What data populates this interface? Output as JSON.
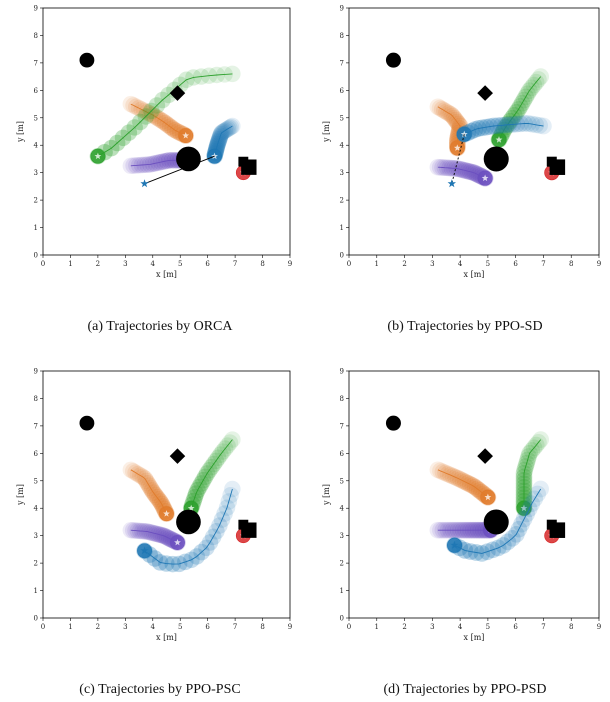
{
  "figure": {
    "captions": [
      "(a) Trajectories by ORCA",
      "(b) Trajectories by PPO-SD",
      "(c) Trajectories by PPO-PSC",
      "(d) Trajectories by PPO-PSD"
    ]
  },
  "colors": {
    "human_orange": "#e07b2b",
    "human_green": "#2ca02c",
    "human_purple": "#6b4fbf",
    "human_red": "#d62728",
    "robot_blue": "#1f77b4",
    "obstacle": "#000000"
  },
  "chart_data": [
    {
      "type": "scatter",
      "title": "",
      "caption": "(a) Trajectories by ORCA",
      "xlabel": "x [m]",
      "ylabel": "y [m]",
      "xlim": [
        0,
        9
      ],
      "ylim": [
        0,
        9
      ],
      "xticks": [
        0,
        1,
        2,
        3,
        4,
        5,
        6,
        7,
        8,
        9
      ],
      "yticks": [
        0,
        1,
        2,
        3,
        4,
        5,
        6,
        7,
        8,
        9
      ],
      "grid": false,
      "obstacles": [
        {
          "shape": "circle",
          "center": [
            1.6,
            7.1
          ],
          "radius": 0.27
        },
        {
          "shape": "diamond",
          "center": [
            4.9,
            5.9
          ],
          "radius": 0.2
        },
        {
          "shape": "circle",
          "center": [
            5.3,
            3.5
          ],
          "radius": 0.45
        },
        {
          "shape": "square",
          "center": [
            7.5,
            3.2
          ],
          "radius": 0.28
        },
        {
          "shape": "square",
          "center": [
            7.3,
            3.4
          ],
          "radius": 0.18
        }
      ],
      "series": [
        {
          "role": "human",
          "color": "#e07b2b",
          "points": [
            [
              3.2,
              5.5
            ],
            [
              3.6,
              5.3
            ],
            [
              4.0,
              5.1
            ],
            [
              4.4,
              4.85
            ],
            [
              4.8,
              4.55
            ],
            [
              5.2,
              4.35
            ]
          ]
        },
        {
          "role": "human",
          "color": "#2ca02c",
          "points": [
            [
              6.9,
              6.6
            ],
            [
              6.2,
              6.55
            ],
            [
              5.3,
              6.45
            ],
            [
              4.3,
              5.6
            ],
            [
              3.4,
              4.7
            ],
            [
              2.5,
              3.9
            ],
            [
              2.0,
              3.6
            ]
          ]
        },
        {
          "role": "human",
          "color": "#6b4fbf",
          "points": [
            [
              3.2,
              3.25
            ],
            [
              3.9,
              3.3
            ],
            [
              4.6,
              3.45
            ],
            [
              5.3,
              3.45
            ]
          ]
        },
        {
          "role": "human",
          "color": "#d62728",
          "points": [
            [
              7.3,
              3.0
            ]
          ]
        },
        {
          "role": "robot",
          "color": "#1f77b4",
          "points": [
            [
              6.9,
              4.7
            ],
            [
              6.5,
              4.45
            ],
            [
              6.35,
              4.0
            ],
            [
              6.25,
              3.6
            ]
          ],
          "path": [
            [
              6.25,
              3.6
            ],
            [
              3.7,
              2.6
            ]
          ],
          "goal": [
            3.7,
            2.6
          ],
          "path_style": "solid"
        }
      ]
    },
    {
      "type": "scatter",
      "title": "",
      "caption": "(b) Trajectories by PPO-SD",
      "xlabel": "x [m]",
      "ylabel": "y [m]",
      "xlim": [
        0,
        9
      ],
      "ylim": [
        0,
        9
      ],
      "xticks": [
        0,
        1,
        2,
        3,
        4,
        5,
        6,
        7,
        8,
        9
      ],
      "yticks": [
        0,
        1,
        2,
        3,
        4,
        5,
        6,
        7,
        8,
        9
      ],
      "grid": false,
      "obstacles": [
        {
          "shape": "circle",
          "center": [
            1.6,
            7.1
          ],
          "radius": 0.27
        },
        {
          "shape": "diamond",
          "center": [
            4.9,
            5.9
          ],
          "radius": 0.2
        },
        {
          "shape": "circle",
          "center": [
            5.3,
            3.5
          ],
          "radius": 0.45
        },
        {
          "shape": "square",
          "center": [
            7.5,
            3.2
          ],
          "radius": 0.28
        },
        {
          "shape": "square",
          "center": [
            7.3,
            3.4
          ],
          "radius": 0.18
        }
      ],
      "series": [
        {
          "role": "human",
          "color": "#e07b2b",
          "points": [
            [
              3.2,
              5.4
            ],
            [
              3.7,
              5.1
            ],
            [
              4.0,
              4.7
            ],
            [
              3.9,
              4.2
            ],
            [
              3.9,
              3.9
            ]
          ]
        },
        {
          "role": "human",
          "color": "#2ca02c",
          "points": [
            [
              6.9,
              6.5
            ],
            [
              6.5,
              6.0
            ],
            [
              6.1,
              5.3
            ],
            [
              5.6,
              4.6
            ],
            [
              5.4,
              4.2
            ]
          ]
        },
        {
          "role": "human",
          "color": "#6b4fbf",
          "points": [
            [
              3.2,
              3.2
            ],
            [
              3.9,
              3.15
            ],
            [
              4.5,
              3.0
            ],
            [
              4.9,
              2.8
            ]
          ]
        },
        {
          "role": "human",
          "color": "#d62728",
          "points": [
            [
              7.3,
              3.0
            ]
          ]
        },
        {
          "role": "robot",
          "color": "#1f77b4",
          "points": [
            [
              7.0,
              4.7
            ],
            [
              6.4,
              4.8
            ],
            [
              5.8,
              4.75
            ],
            [
              5.2,
              4.7
            ],
            [
              4.6,
              4.6
            ],
            [
              4.15,
              4.4
            ]
          ],
          "path": [
            [
              4.15,
              4.4
            ],
            [
              3.7,
              2.6
            ]
          ],
          "goal": [
            3.7,
            2.6
          ],
          "path_style": "dashed"
        }
      ]
    },
    {
      "type": "scatter",
      "title": "",
      "caption": "(c) Trajectories by PPO-PSC",
      "xlabel": "x [m]",
      "ylabel": "y [m]",
      "xlim": [
        0,
        9
      ],
      "ylim": [
        0,
        9
      ],
      "xticks": [
        0,
        1,
        2,
        3,
        4,
        5,
        6,
        7,
        8,
        9
      ],
      "yticks": [
        0,
        1,
        2,
        3,
        4,
        5,
        6,
        7,
        8,
        9
      ],
      "grid": false,
      "obstacles": [
        {
          "shape": "circle",
          "center": [
            1.6,
            7.1
          ],
          "radius": 0.27
        },
        {
          "shape": "diamond",
          "center": [
            4.9,
            5.9
          ],
          "radius": 0.2
        },
        {
          "shape": "circle",
          "center": [
            5.3,
            3.5
          ],
          "radius": 0.45
        },
        {
          "shape": "square",
          "center": [
            7.5,
            3.2
          ],
          "radius": 0.28
        },
        {
          "shape": "square",
          "center": [
            7.3,
            3.4
          ],
          "radius": 0.18
        }
      ],
      "series": [
        {
          "role": "human",
          "color": "#e07b2b",
          "points": [
            [
              3.2,
              5.4
            ],
            [
              3.7,
              5.1
            ],
            [
              4.0,
              4.6
            ],
            [
              4.3,
              4.2
            ],
            [
              4.5,
              3.8
            ]
          ]
        },
        {
          "role": "human",
          "color": "#2ca02c",
          "points": [
            [
              6.9,
              6.5
            ],
            [
              6.5,
              6.0
            ],
            [
              6.0,
              5.3
            ],
            [
              5.6,
              4.6
            ],
            [
              5.4,
              4.0
            ]
          ]
        },
        {
          "role": "human",
          "color": "#6b4fbf",
          "points": [
            [
              3.2,
              3.2
            ],
            [
              3.8,
              3.15
            ],
            [
              4.4,
              3.0
            ],
            [
              4.9,
              2.75
            ]
          ]
        },
        {
          "role": "human",
          "color": "#d62728",
          "points": [
            [
              7.3,
              3.0
            ]
          ]
        },
        {
          "role": "robot",
          "color": "#1f77b4",
          "points": [
            [
              6.9,
              4.7
            ],
            [
              6.7,
              4.0
            ],
            [
              6.4,
              3.3
            ],
            [
              6.0,
              2.6
            ],
            [
              5.5,
              2.15
            ],
            [
              4.9,
              1.95
            ],
            [
              4.3,
              2.0
            ],
            [
              3.7,
              2.45
            ]
          ],
          "goal": [
            3.7,
            2.45
          ]
        }
      ]
    },
    {
      "type": "scatter",
      "title": "",
      "caption": "(d) Trajectories by PPO-PSD",
      "xlabel": "x [m]",
      "ylabel": "y [m]",
      "xlim": [
        0,
        9
      ],
      "ylim": [
        0,
        9
      ],
      "xticks": [
        0,
        1,
        2,
        3,
        4,
        5,
        6,
        7,
        8,
        9
      ],
      "yticks": [
        0,
        1,
        2,
        3,
        4,
        5,
        6,
        7,
        8,
        9
      ],
      "grid": false,
      "obstacles": [
        {
          "shape": "circle",
          "center": [
            1.6,
            7.1
          ],
          "radius": 0.27
        },
        {
          "shape": "diamond",
          "center": [
            4.9,
            5.9
          ],
          "radius": 0.2
        },
        {
          "shape": "circle",
          "center": [
            5.3,
            3.5
          ],
          "radius": 0.45
        },
        {
          "shape": "square",
          "center": [
            7.5,
            3.2
          ],
          "radius": 0.28
        },
        {
          "shape": "square",
          "center": [
            7.3,
            3.4
          ],
          "radius": 0.18
        }
      ],
      "series": [
        {
          "role": "human",
          "color": "#e07b2b",
          "points": [
            [
              3.2,
              5.4
            ],
            [
              3.9,
              5.1
            ],
            [
              4.5,
              4.8
            ],
            [
              5.0,
              4.4
            ]
          ]
        },
        {
          "role": "human",
          "color": "#2ca02c",
          "points": [
            [
              6.9,
              6.5
            ],
            [
              6.5,
              6.0
            ],
            [
              6.3,
              5.3
            ],
            [
              6.3,
              4.5
            ],
            [
              6.3,
              4.0
            ]
          ]
        },
        {
          "role": "human",
          "color": "#6b4fbf",
          "points": [
            [
              3.2,
              3.2
            ],
            [
              3.9,
              3.2
            ],
            [
              4.6,
              3.2
            ],
            [
              5.1,
              3.2
            ]
          ]
        },
        {
          "role": "human",
          "color": "#d62728",
          "points": [
            [
              7.3,
              3.0
            ]
          ]
        },
        {
          "role": "robot",
          "color": "#1f77b4",
          "points": [
            [
              6.9,
              4.7
            ],
            [
              6.6,
              4.2
            ],
            [
              6.3,
              3.6
            ],
            [
              6.0,
              3.0
            ],
            [
              5.5,
              2.6
            ],
            [
              4.8,
              2.35
            ],
            [
              4.2,
              2.45
            ],
            [
              3.8,
              2.65
            ]
          ],
          "goal": [
            3.8,
            2.65
          ]
        }
      ]
    }
  ]
}
